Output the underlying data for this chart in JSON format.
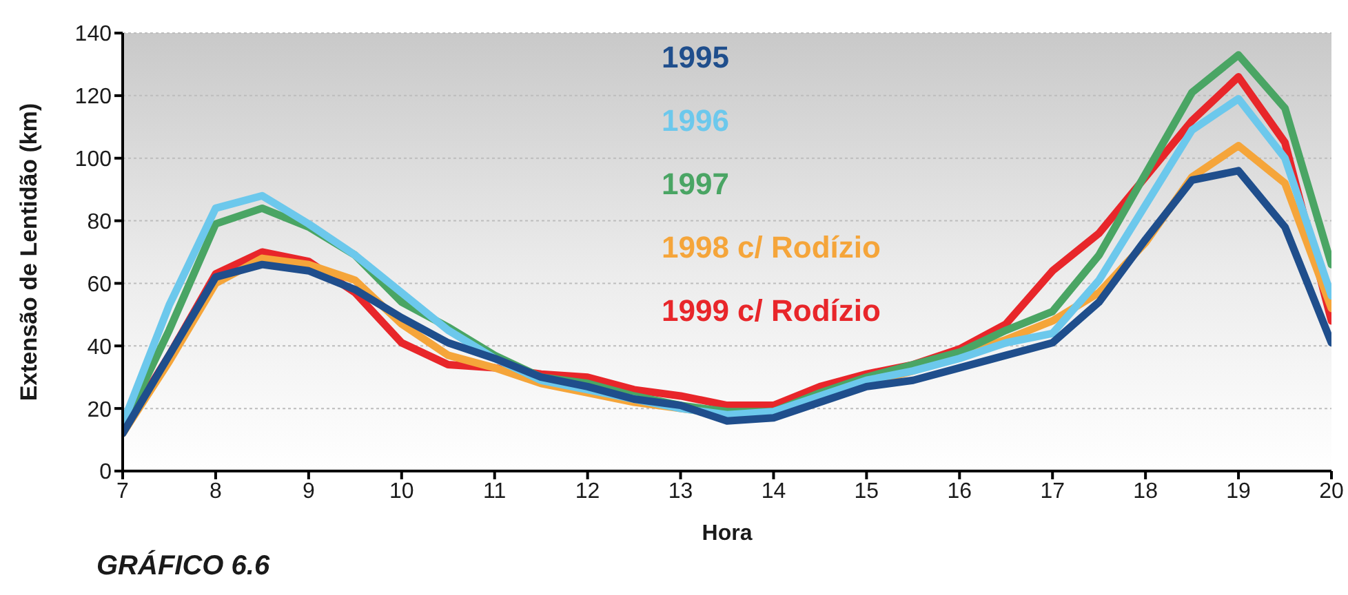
{
  "chart_data": {
    "type": "line",
    "xlabel": "Hora",
    "ylabel": "Extensão de Lentidão (km)",
    "annotations": [
      "GRÁFICO 6.6"
    ],
    "x": [
      7,
      7.5,
      8,
      8.5,
      9,
      9.5,
      10,
      10.5,
      11,
      11.5,
      12,
      12.5,
      13,
      13.5,
      14,
      14.5,
      15,
      15.5,
      16,
      16.5,
      17,
      17.5,
      18,
      18.5,
      19,
      19.5,
      20
    ],
    "series": [
      {
        "name": "1995",
        "color": "#1f4e8c",
        "values": [
          12,
          37,
          62,
          66,
          64,
          58,
          49,
          41,
          36,
          30,
          27,
          23,
          21,
          16,
          17,
          22,
          27,
          29,
          33,
          37,
          41,
          54,
          74,
          93,
          96,
          78,
          41
        ]
      },
      {
        "name": "1996",
        "color": "#6cc8ec",
        "values": [
          15,
          53,
          84,
          88,
          79,
          69,
          57,
          45,
          36,
          29,
          26,
          23,
          20,
          18,
          19,
          24,
          29,
          32,
          36,
          41,
          44,
          61,
          85,
          109,
          119,
          100,
          56
        ]
      },
      {
        "name": "1997",
        "color": "#4aa564",
        "values": [
          14,
          45,
          79,
          84,
          78,
          69,
          54,
          46,
          37,
          30,
          28,
          24,
          21,
          19,
          19,
          25,
          30,
          34,
          38,
          45,
          51,
          69,
          95,
          121,
          133,
          116,
          66
        ]
      },
      {
        "name": "1998 c/ Rodízio",
        "color": "#f5a53a",
        "values": [
          12,
          35,
          60,
          68,
          66,
          61,
          47,
          37,
          33,
          28,
          25,
          22,
          20,
          18,
          19,
          24,
          28,
          32,
          37,
          42,
          48,
          57,
          73,
          94,
          104,
          92,
          52
        ]
      },
      {
        "name": "1999 c/ Rodízio",
        "color": "#e8262a",
        "values": [
          13,
          37,
          63,
          70,
          67,
          57,
          41,
          34,
          33,
          31,
          30,
          26,
          24,
          21,
          21,
          27,
          31,
          34,
          39,
          47,
          64,
          76,
          94,
          112,
          126,
          105,
          48
        ]
      }
    ],
    "xlim": [
      7,
      20
    ],
    "xticks": [
      7,
      8,
      9,
      10,
      11,
      12,
      13,
      14,
      15,
      16,
      17,
      18,
      19,
      20
    ],
    "ylim": [
      0,
      140
    ],
    "yticks": [
      0,
      20,
      40,
      60,
      80,
      100,
      120,
      140
    ],
    "grid": "y",
    "legend": "top",
    "marker": "none",
    "line_style": "solid"
  }
}
